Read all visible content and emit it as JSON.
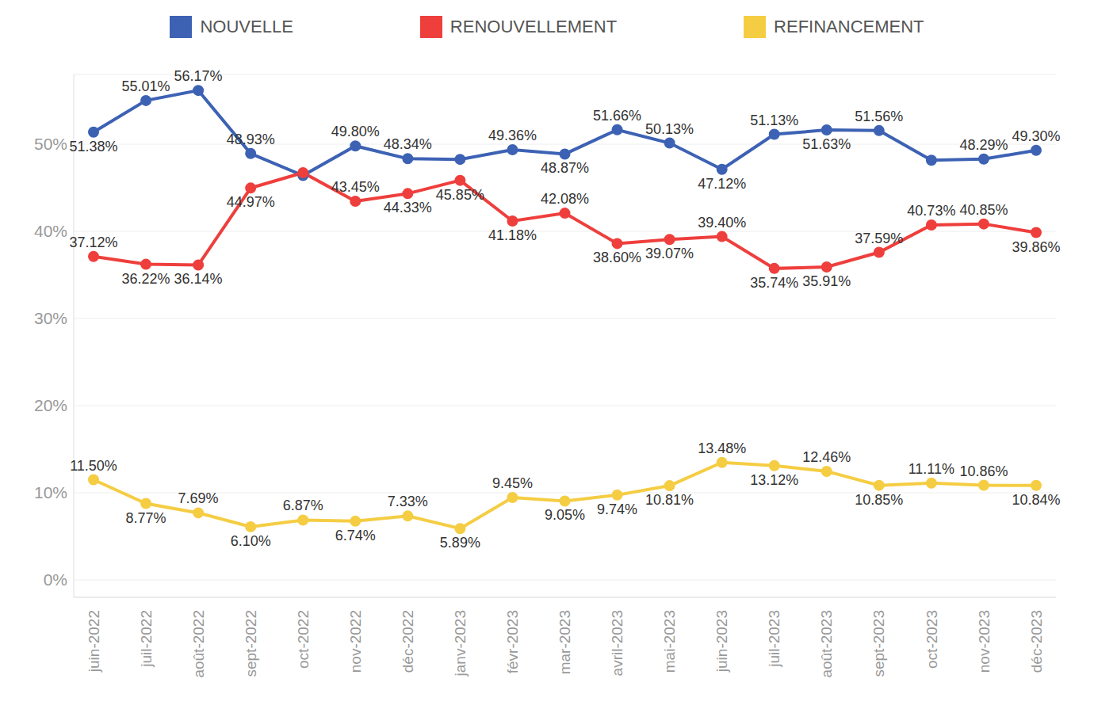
{
  "chart_data": {
    "type": "line",
    "categories": [
      "juin-2022",
      "juil-2022",
      "août-2022",
      "sept-2022",
      "oct-2022",
      "nov-2022",
      "déc-2022",
      "janv-2023",
      "févr-2023",
      "mar-2023",
      "avril-2023",
      "mai-2023",
      "juin-2023",
      "juil-2023",
      "août-2023",
      "sept-2023",
      "oct-2023",
      "nov-2023",
      "déc-2023"
    ],
    "series": [
      {
        "name": "NOUVELLE",
        "color": "#3d62b4",
        "values": [
          51.38,
          55.01,
          56.17,
          48.93,
          46.4,
          49.8,
          48.34,
          48.26,
          49.36,
          48.87,
          51.66,
          50.13,
          47.12,
          51.13,
          51.63,
          51.56,
          48.16,
          48.29,
          49.3
        ],
        "value_labels": [
          "51.38%",
          "55.01%",
          "56.17%",
          "48.93%",
          null,
          "49.80%",
          "48.34%",
          null,
          "49.36%",
          "48.87%",
          "51.66%",
          "50.13%",
          "47.12%",
          "51.13%",
          "51.63%",
          "51.56%",
          null,
          "48.29%",
          "49.30%"
        ]
      },
      {
        "name": "RENOUVELLEMENT",
        "color": "#ee3f3d",
        "values": [
          37.12,
          36.22,
          36.14,
          44.97,
          46.73,
          43.45,
          44.33,
          45.85,
          41.18,
          42.08,
          38.6,
          39.07,
          39.4,
          35.74,
          35.91,
          37.59,
          40.73,
          40.85,
          39.86
        ],
        "value_labels": [
          "37.12%",
          "36.22%",
          "36.14%",
          "44.97%",
          null,
          "43.45%",
          "44.33%",
          "45.85%",
          "41.18%",
          "42.08%",
          "38.60%",
          "39.07%",
          "39.40%",
          "35.74%",
          "35.91%",
          "37.59%",
          "40.73%",
          "40.85%",
          "39.86%"
        ]
      },
      {
        "name": "REFINANCEMENT",
        "color": "#f5cd43",
        "values": [
          11.5,
          8.77,
          7.69,
          6.1,
          6.87,
          6.74,
          7.33,
          5.89,
          9.45,
          9.05,
          9.74,
          10.81,
          13.48,
          13.12,
          12.46,
          10.85,
          11.11,
          10.86,
          10.84
        ],
        "value_labels": [
          "11.50%",
          "8.77%",
          "7.69%",
          "6.10%",
          "6.87%",
          "6.74%",
          "7.33%",
          "5.89%",
          "9.45%",
          "9.05%",
          "9.74%",
          "10.81%",
          "13.48%",
          "13.12%",
          "12.46%",
          "10.85%",
          "11.11%",
          "10.86%",
          "10.84%"
        ]
      }
    ],
    "ylim": [
      -2,
      58
    ],
    "yticks": [
      {
        "value": 0,
        "label": "0%"
      },
      {
        "value": 10,
        "label": "10%"
      },
      {
        "value": 20,
        "label": "20%"
      },
      {
        "value": 30,
        "label": "30%"
      },
      {
        "value": 40,
        "label": "40%"
      },
      {
        "value": 50,
        "label": "50%"
      }
    ],
    "grid": true,
    "legend": "top",
    "data_labels": true,
    "marker": "circle"
  }
}
